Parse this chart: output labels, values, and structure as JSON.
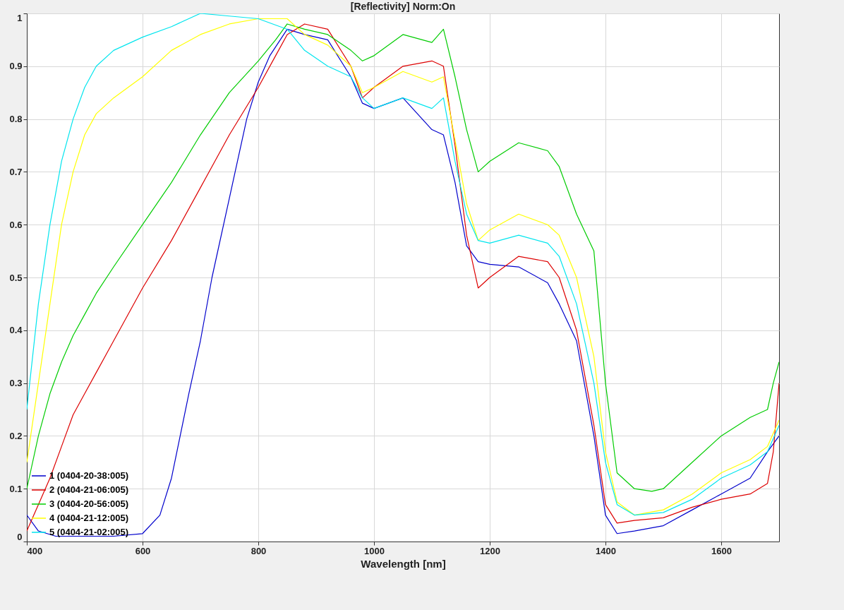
{
  "chart_data": {
    "type": "line",
    "title": "[Reflectivity]  Norm:On",
    "xlabel": "Wavelength [nm]",
    "xlim": [
      400,
      1700
    ],
    "xticks": [
      400,
      600,
      800,
      1000,
      1200,
      1400,
      1600
    ],
    "ylim": [
      0,
      1
    ],
    "yticks": [
      0,
      0.1,
      0.2,
      0.3,
      0.4,
      0.5,
      0.6,
      0.7,
      0.8,
      0.9,
      1
    ],
    "grid": true,
    "legend": "bottom left",
    "line_style": "solid",
    "series": [
      {
        "name": "1 (0404-20-38:005)",
        "color": "#0000cc",
        "x": [
          400,
          420,
          450,
          500,
          550,
          600,
          630,
          650,
          680,
          700,
          720,
          750,
          780,
          800,
          820,
          850,
          880,
          920,
          960,
          980,
          1000,
          1050,
          1100,
          1120,
          1140,
          1160,
          1180,
          1200,
          1250,
          1300,
          1320,
          1350,
          1380,
          1400,
          1420,
          1450,
          1500,
          1550,
          1600,
          1650,
          1680,
          1700
        ],
        "values": [
          0.05,
          0.02,
          0.01,
          0.01,
          0.01,
          0.015,
          0.05,
          0.12,
          0.28,
          0.38,
          0.5,
          0.65,
          0.8,
          0.87,
          0.92,
          0.97,
          0.96,
          0.95,
          0.88,
          0.83,
          0.82,
          0.84,
          0.78,
          0.77,
          0.68,
          0.56,
          0.53,
          0.525,
          0.52,
          0.49,
          0.45,
          0.38,
          0.2,
          0.05,
          0.015,
          0.02,
          0.03,
          0.06,
          0.09,
          0.12,
          0.17,
          0.2
        ]
      },
      {
        "name": "2 (0404-21-06:005)",
        "color": "#dd0000",
        "x": [
          400,
          420,
          440,
          460,
          480,
          500,
          520,
          550,
          600,
          650,
          700,
          750,
          800,
          830,
          850,
          880,
          920,
          960,
          980,
          1000,
          1050,
          1100,
          1120,
          1140,
          1160,
          1180,
          1200,
          1250,
          1300,
          1320,
          1350,
          1380,
          1400,
          1420,
          1450,
          1500,
          1550,
          1600,
          1650,
          1680,
          1690,
          1700
        ],
        "values": [
          0.02,
          0.07,
          0.12,
          0.18,
          0.24,
          0.28,
          0.32,
          0.38,
          0.48,
          0.57,
          0.67,
          0.77,
          0.86,
          0.92,
          0.96,
          0.98,
          0.97,
          0.9,
          0.84,
          0.86,
          0.9,
          0.91,
          0.9,
          0.75,
          0.58,
          0.48,
          0.5,
          0.54,
          0.53,
          0.5,
          0.4,
          0.22,
          0.07,
          0.035,
          0.04,
          0.045,
          0.065,
          0.08,
          0.09,
          0.11,
          0.17,
          0.3
        ]
      },
      {
        "name": "3 (0404-20-56:005)",
        "color": "#00cc00",
        "x": [
          400,
          420,
          440,
          460,
          480,
          500,
          520,
          550,
          600,
          650,
          700,
          750,
          800,
          830,
          850,
          880,
          920,
          960,
          980,
          1000,
          1050,
          1100,
          1120,
          1140,
          1160,
          1180,
          1200,
          1250,
          1300,
          1320,
          1350,
          1380,
          1400,
          1420,
          1450,
          1480,
          1500,
          1550,
          1600,
          1650,
          1680,
          1690,
          1700
        ],
        "values": [
          0.1,
          0.2,
          0.28,
          0.34,
          0.39,
          0.43,
          0.47,
          0.52,
          0.6,
          0.68,
          0.77,
          0.85,
          0.91,
          0.95,
          0.98,
          0.97,
          0.96,
          0.93,
          0.91,
          0.92,
          0.96,
          0.945,
          0.97,
          0.88,
          0.78,
          0.7,
          0.72,
          0.755,
          0.74,
          0.71,
          0.62,
          0.55,
          0.3,
          0.13,
          0.1,
          0.095,
          0.1,
          0.15,
          0.2,
          0.235,
          0.25,
          0.3,
          0.34
        ]
      },
      {
        "name": "4 (0404-21-12:005)",
        "color": "#ffff00",
        "x": [
          400,
          420,
          440,
          460,
          480,
          500,
          520,
          550,
          600,
          650,
          700,
          750,
          800,
          850,
          880,
          920,
          960,
          980,
          1000,
          1050,
          1100,
          1120,
          1140,
          1160,
          1180,
          1200,
          1250,
          1300,
          1320,
          1350,
          1380,
          1400,
          1420,
          1450,
          1500,
          1550,
          1600,
          1650,
          1680,
          1700
        ],
        "values": [
          0.15,
          0.3,
          0.45,
          0.6,
          0.7,
          0.77,
          0.81,
          0.84,
          0.88,
          0.93,
          0.96,
          0.98,
          0.99,
          0.99,
          0.96,
          0.94,
          0.9,
          0.85,
          0.86,
          0.89,
          0.87,
          0.88,
          0.76,
          0.64,
          0.57,
          0.59,
          0.62,
          0.6,
          0.58,
          0.5,
          0.35,
          0.17,
          0.075,
          0.05,
          0.06,
          0.09,
          0.13,
          0.155,
          0.18,
          0.23
        ]
      },
      {
        "name": "5 (0404-21-02:005)",
        "color": "#00e5ee",
        "x": [
          400,
          420,
          440,
          460,
          480,
          500,
          520,
          550,
          600,
          650,
          700,
          750,
          800,
          850,
          880,
          920,
          960,
          980,
          1000,
          1050,
          1100,
          1120,
          1140,
          1160,
          1180,
          1200,
          1250,
          1300,
          1320,
          1350,
          1380,
          1400,
          1420,
          1450,
          1500,
          1550,
          1600,
          1650,
          1680,
          1700
        ],
        "values": [
          0.25,
          0.45,
          0.6,
          0.72,
          0.8,
          0.86,
          0.9,
          0.93,
          0.955,
          0.975,
          1,
          0.995,
          0.99,
          0.97,
          0.93,
          0.9,
          0.88,
          0.84,
          0.82,
          0.84,
          0.82,
          0.84,
          0.72,
          0.62,
          0.57,
          0.565,
          0.58,
          0.565,
          0.54,
          0.45,
          0.3,
          0.15,
          0.07,
          0.05,
          0.055,
          0.08,
          0.12,
          0.145,
          0.17,
          0.22
        ]
      }
    ]
  }
}
